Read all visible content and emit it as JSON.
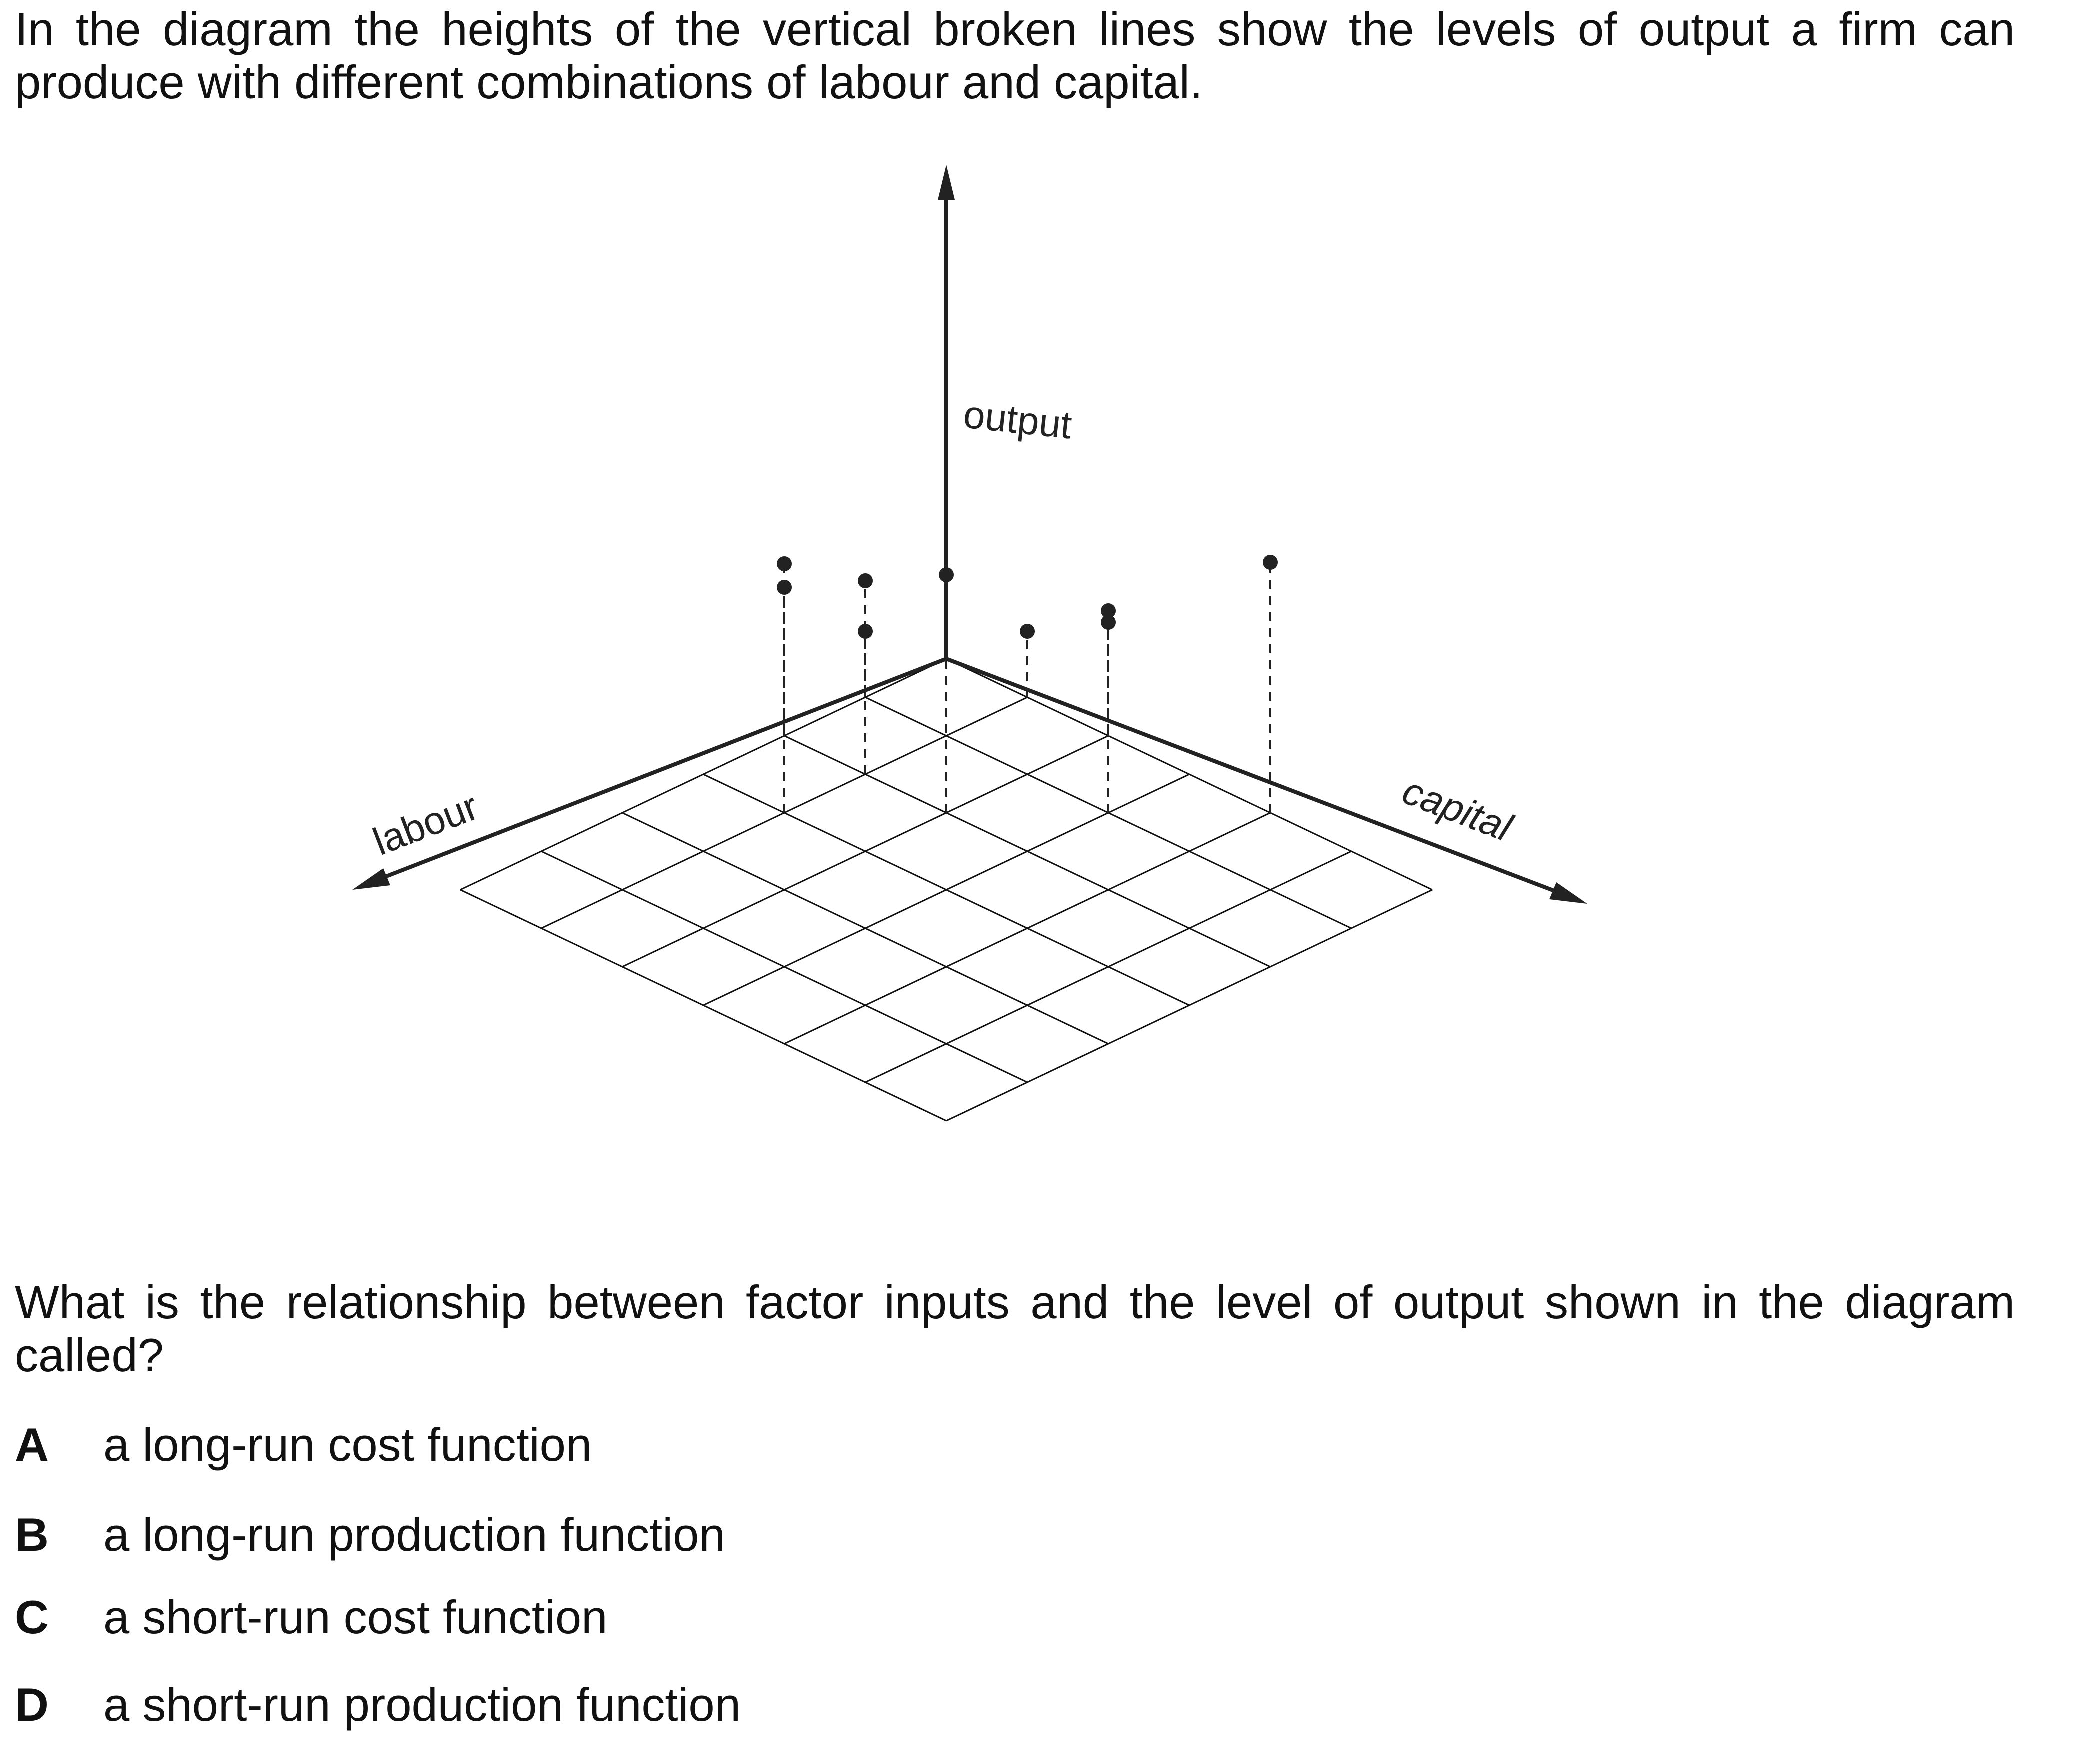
{
  "question": {
    "stem_intro": "In the diagram the heights of the vertical broken lines show the levels of output a firm can produce with different combinations of labour and capital.",
    "prompt": "What is the relationship between factor inputs and the level of output shown in the diagram called?",
    "options": [
      {
        "letter": "A",
        "text": "a long-run cost function"
      },
      {
        "letter": "B",
        "text": "a long-run production function"
      },
      {
        "letter": "C",
        "text": "a short-run cost function"
      },
      {
        "letter": "D",
        "text": "a short-run production function"
      }
    ]
  },
  "diagram": {
    "axis_labels": {
      "vertical": "output",
      "left": "labour",
      "right": "capital"
    },
    "colors": {
      "line": "#222222",
      "grid": "#111111"
    }
  }
}
